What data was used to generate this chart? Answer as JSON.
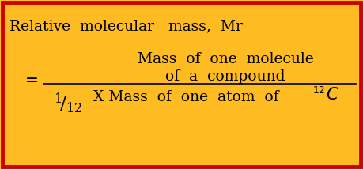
{
  "background_color": "#FFBB22",
  "border_color": "#CC0000",
  "border_linewidth": 3.5,
  "title_text": "Relative  molecular   mass,  Mr",
  "numerator_line1": "Mass  of  one  molecule",
  "numerator_line2": "of  a  compound",
  "denominator_text": "X Mass  of  one  atom  of",
  "main_fontsize": 13.5,
  "title_fontsize": 13.5,
  "text_color": "#000000",
  "fig_width": 4.59,
  "fig_height": 2.14,
  "dpi": 100
}
